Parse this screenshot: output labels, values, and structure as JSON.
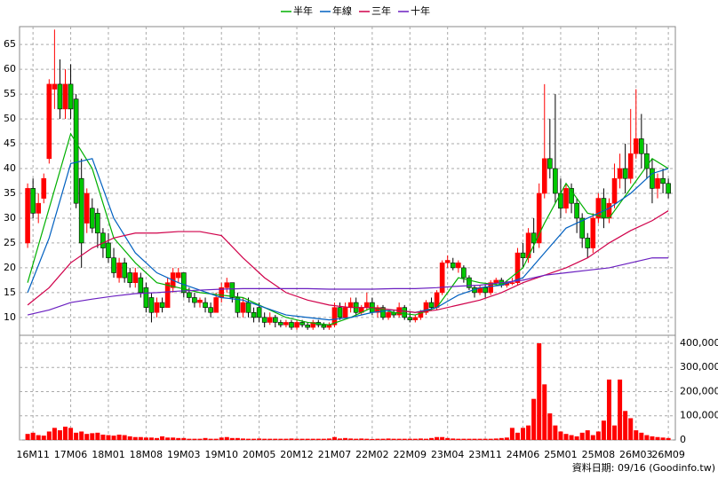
{
  "chart_data": {
    "type": "candlestick",
    "note": "資料日期: 09/16  (Goodinfo.tw)",
    "x": [
      -1,
      0,
      1,
      2,
      3,
      4,
      5,
      6,
      7,
      8,
      9,
      10,
      11,
      12,
      13,
      14,
      15,
      16,
      17,
      18,
      19,
      20,
      21,
      22,
      23,
      24,
      25,
      26,
      27,
      28,
      29,
      30,
      31,
      32,
      33,
      34,
      35,
      36,
      37,
      38,
      39,
      40,
      41,
      42,
      43,
      44,
      45,
      46,
      47,
      48,
      49,
      50,
      51,
      52,
      53,
      54,
      55,
      56,
      57,
      58,
      59,
      60,
      61,
      62,
      63,
      64,
      65,
      66,
      67,
      68,
      69,
      70,
      71,
      72,
      73,
      74,
      75,
      76,
      77,
      78,
      79,
      80,
      81,
      82,
      83,
      84,
      85,
      86,
      87,
      88,
      89,
      90,
      91,
      92,
      93,
      94,
      95,
      96,
      97,
      98,
      99,
      100,
      101,
      102,
      103,
      104,
      105,
      106,
      107,
      108,
      109,
      110,
      111,
      112,
      113,
      114,
      115,
      116,
      117,
      118
    ],
    "open": [
      25,
      36,
      31,
      34,
      42,
      56,
      57,
      52,
      57,
      54,
      38,
      29,
      32,
      31,
      27,
      25,
      22,
      18,
      21,
      19,
      17,
      18,
      16,
      14,
      11,
      13,
      12,
      16,
      18,
      19,
      15,
      14,
      13,
      13,
      12,
      11,
      14,
      16,
      17,
      14,
      11,
      13,
      11,
      12,
      10,
      9,
      10,
      9,
      8.5,
      9,
      8,
      9,
      8.5,
      8,
      9,
      8.5,
      8,
      8.5,
      12,
      10,
      12,
      13,
      11,
      12,
      13,
      11,
      12,
      10,
      11,
      10.5,
      12,
      10,
      9.5,
      10,
      11,
      13,
      12,
      15,
      21,
      21,
      20,
      20,
      18,
      16,
      15,
      16,
      15,
      17,
      17.5,
      16.5,
      17,
      17,
      23,
      22,
      27,
      25,
      35,
      42,
      40,
      35,
      32,
      36,
      33,
      30,
      26,
      24,
      30,
      34,
      30,
      33,
      38,
      40,
      38,
      43,
      46,
      43,
      40,
      36,
      38,
      37
    ],
    "high": [
      37,
      38,
      35,
      39,
      58,
      68,
      62,
      60,
      61,
      55,
      42,
      36,
      34,
      32,
      28,
      27,
      24,
      22,
      22,
      20,
      20,
      19,
      17,
      15,
      14,
      14,
      18,
      20,
      20,
      19,
      16,
      15,
      14,
      14,
      13,
      15,
      17,
      18,
      17,
      15,
      14,
      14,
      12,
      13,
      11,
      11,
      10.5,
      9.5,
      9.5,
      9.5,
      9.5,
      9.5,
      9,
      9.5,
      9.5,
      9,
      9,
      13,
      13,
      13,
      14,
      14,
      12.5,
      15,
      14,
      12.5,
      12.5,
      11.5,
      11.5,
      13,
      12.5,
      11,
      10.5,
      11.5,
      13.5,
      14,
      15.5,
      21.5,
      22.5,
      22,
      21.5,
      20.5,
      18.5,
      16.5,
      16.5,
      16.5,
      17.5,
      18,
      18,
      17.5,
      18,
      24,
      25,
      28,
      30,
      37,
      57,
      50,
      55,
      38,
      37,
      37,
      34,
      31,
      27,
      31,
      35,
      36,
      34,
      41,
      43,
      45,
      52,
      56,
      51,
      45,
      42,
      39,
      40,
      38
    ],
    "low": [
      24,
      30,
      29,
      33,
      41,
      52,
      50,
      50,
      50,
      32,
      20,
      27,
      27,
      24,
      22,
      21,
      18,
      17,
      17,
      16,
      16,
      14,
      11,
      9,
      10,
      11,
      12,
      15,
      17,
      14,
      13,
      12,
      12,
      11,
      10,
      11,
      13,
      15,
      13,
      10,
      10,
      10,
      9,
      9,
      8,
      8.5,
      8,
      8,
      8,
      7.5,
      7.5,
      8,
      7.5,
      7.5,
      8,
      7.5,
      7.5,
      8,
      9.5,
      10,
      11,
      10.5,
      10.5,
      11.5,
      10.5,
      10,
      9.5,
      9.5,
      10,
      10,
      9.5,
      9,
      9,
      9.5,
      10.5,
      11.5,
      11.5,
      14.5,
      20,
      19.5,
      19,
      17,
      15.5,
      14,
      14.5,
      14,
      14.5,
      16.5,
      16,
      16,
      16.5,
      16.5,
      20,
      21,
      23,
      24,
      34,
      38,
      33,
      30,
      31,
      31,
      27,
      24,
      22,
      23,
      29,
      28,
      29,
      32,
      36,
      35,
      37,
      42,
      40,
      38,
      33,
      34,
      35,
      34
    ],
    "close": [
      36,
      31,
      33,
      38,
      57,
      57,
      52,
      57,
      52,
      33,
      25,
      35,
      28,
      27,
      24,
      22,
      19,
      21,
      18,
      17,
      19,
      15,
      12,
      11,
      13,
      12,
      17,
      19,
      19,
      15,
      14,
      13,
      13.5,
      12,
      11,
      14,
      16,
      17,
      14,
      11,
      13,
      11,
      10,
      10,
      9,
      10,
      9,
      8.5,
      9,
      8,
      9,
      8.5,
      8,
      9,
      8.5,
      8,
      8.5,
      12,
      10,
      12,
      13,
      11,
      12,
      13,
      11,
      12,
      10,
      11,
      10.5,
      12,
      10,
      9.5,
      10,
      11,
      13,
      12,
      15,
      21,
      21.5,
      20,
      21,
      18,
      16,
      15,
      16,
      15,
      17,
      17.5,
      16.5,
      17,
      17,
      23,
      22,
      27,
      25,
      35,
      42,
      40,
      35,
      32,
      36,
      33,
      30,
      26,
      24,
      30,
      34,
      30,
      33,
      38,
      40,
      38,
      43,
      46,
      43,
      40,
      36,
      38,
      37,
      35
    ],
    "volume": [
      25000,
      30000,
      20000,
      18000,
      35000,
      50000,
      40000,
      55000,
      50000,
      30000,
      35000,
      25000,
      28000,
      30000,
      22000,
      20000,
      18000,
      22000,
      20000,
      15000,
      12000,
      12000,
      10000,
      10000,
      8000,
      15000,
      10000,
      10000,
      8000,
      8000,
      5000,
      5000,
      5000,
      8000,
      5000,
      5000,
      10000,
      12000,
      8000,
      8000,
      6000,
      5000,
      5000,
      6000,
      5000,
      5000,
      5000,
      5000,
      5000,
      6000,
      5000,
      5000,
      5000,
      5000,
      5000,
      5000,
      6000,
      12000,
      6000,
      8000,
      6000,
      5000,
      6000,
      5000,
      4000,
      5000,
      5000,
      6000,
      5000,
      5000,
      5000,
      5000,
      5000,
      6000,
      5000,
      8000,
      12000,
      12000,
      8000,
      6000,
      5000,
      5000,
      5000,
      5000,
      5000,
      5000,
      5000,
      6000,
      8000,
      10000,
      50000,
      30000,
      50000,
      60000,
      170000,
      400000,
      230000,
      110000,
      60000,
      35000,
      25000,
      20000,
      15000,
      30000,
      40000,
      20000,
      35000,
      80000,
      250000,
      60000,
      250000,
      120000,
      90000,
      40000,
      30000,
      20000,
      15000,
      12000,
      10000,
      8000
    ],
    "up_color": "#ff0000",
    "down_color": "#00c800",
    "volume_color": "#ff0000",
    "series": [
      {
        "name": "半年",
        "color": "#00b000",
        "x": [
          -1,
          3,
          7,
          11,
          15,
          19,
          23,
          27,
          31,
          35,
          39,
          43,
          47,
          51,
          55,
          59,
          63,
          67,
          71,
          75,
          79,
          83,
          87,
          91,
          95,
          99,
          103,
          107,
          111,
          115,
          118
        ],
        "values": [
          17,
          32,
          47,
          40,
          26,
          21,
          17,
          16,
          15,
          14.5,
          14,
          12,
          10,
          9,
          8.5,
          10,
          12,
          11,
          10.5,
          12,
          18,
          17,
          16.5,
          20,
          29,
          37,
          31,
          30,
          36,
          42,
          40
        ]
      },
      {
        "name": "年線",
        "color": "#0060c0",
        "x": [
          -1,
          3,
          7,
          11,
          15,
          19,
          23,
          27,
          31,
          35,
          39,
          43,
          47,
          51,
          55,
          59,
          63,
          67,
          71,
          75,
          79,
          83,
          87,
          91,
          95,
          99,
          103,
          107,
          111,
          115,
          118
        ],
        "values": [
          15,
          26,
          41,
          42,
          30,
          23,
          19,
          17,
          15.5,
          14,
          13.5,
          12,
          10.5,
          10,
          9.5,
          10,
          11,
          11.5,
          11,
          12,
          14.5,
          16,
          16.5,
          18,
          23,
          28,
          30,
          32,
          35,
          39,
          40
        ]
      },
      {
        "name": "三年",
        "color": "#d0004a",
        "x": [
          -1,
          3,
          7,
          11,
          15,
          19,
          23,
          27,
          31,
          35,
          39,
          43,
          47,
          51,
          55,
          59,
          63,
          67,
          71,
          75,
          79,
          83,
          87,
          91,
          95,
          99,
          103,
          107,
          111,
          115,
          118
        ],
        "values": [
          12.5,
          16,
          21,
          24,
          26,
          27,
          27,
          27.3,
          27.3,
          26.5,
          22,
          18,
          15,
          13.5,
          12.5,
          12,
          12,
          11.5,
          11,
          11.5,
          12.5,
          13.5,
          15,
          17,
          18.5,
          20,
          22,
          25,
          27.5,
          29.5,
          31.5
        ]
      },
      {
        "name": "十年",
        "color": "#6a1fc0",
        "x": [
          -1,
          3,
          7,
          11,
          15,
          19,
          23,
          27,
          31,
          35,
          39,
          43,
          47,
          51,
          55,
          59,
          63,
          67,
          71,
          75,
          79,
          83,
          87,
          91,
          95,
          99,
          103,
          107,
          111,
          115,
          118
        ],
        "values": [
          10.5,
          11.5,
          13,
          13.7,
          14.3,
          14.8,
          15,
          15.3,
          15.5,
          15.7,
          15.8,
          15.8,
          15.8,
          15.8,
          15.7,
          15.7,
          15.7,
          15.8,
          15.8,
          16,
          16.3,
          16.5,
          17,
          17.5,
          18.5,
          19,
          19.5,
          20,
          21,
          22,
          22
        ]
      }
    ],
    "xlim": [
      -2.5,
      119.3
    ],
    "xticks": [
      {
        "value": 0,
        "label": "16M11"
      },
      {
        "value": 7,
        "label": "17M06"
      },
      {
        "value": 14,
        "label": "18M01"
      },
      {
        "value": 21,
        "label": "18M08"
      },
      {
        "value": 28,
        "label": "19M03"
      },
      {
        "value": 35,
        "label": "19M10"
      },
      {
        "value": 42,
        "label": "20M05"
      },
      {
        "value": 49,
        "label": "20M12"
      },
      {
        "value": 56,
        "label": "21M07"
      },
      {
        "value": 63,
        "label": "22M02"
      },
      {
        "value": 70,
        "label": "22M09"
      },
      {
        "value": 77,
        "label": "23M04"
      },
      {
        "value": 84,
        "label": "23M11"
      },
      {
        "value": 91,
        "label": "24M06"
      },
      {
        "value": 98,
        "label": "25M01"
      },
      {
        "value": 105,
        "label": "25M08"
      },
      {
        "value": 112,
        "label": "26M03"
      },
      {
        "value": 118,
        "label": "26M09"
      }
    ],
    "ylim": [
      6.4,
      68.6
    ],
    "yticks": [
      10,
      15,
      20,
      25,
      30,
      35,
      40,
      45,
      50,
      55,
      60,
      65
    ],
    "y2lim": [
      0,
      433000
    ],
    "y2ticks": [
      0,
      {
        "value": 100000,
        "label": "100,000"
      },
      {
        "value": 200000,
        "label": "200,000"
      },
      {
        "value": 300000,
        "label": "300,000"
      },
      {
        "value": 400000,
        "label": "400,000"
      }
    ],
    "grid": true,
    "legend": "top"
  }
}
